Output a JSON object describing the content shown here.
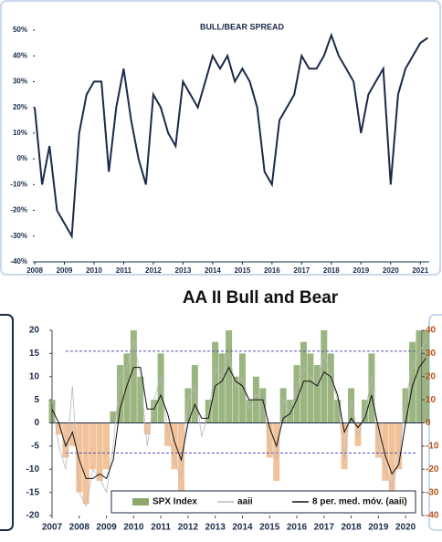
{
  "chart_data": [
    {
      "type": "line",
      "title": "BULL/BEAR SPREAD",
      "x": [
        2008,
        2008.25,
        2008.5,
        2008.75,
        2009,
        2009.25,
        2009.5,
        2009.75,
        2010,
        2010.25,
        2010.5,
        2010.75,
        2011,
        2011.25,
        2011.5,
        2011.75,
        2012,
        2012.25,
        2012.5,
        2012.75,
        2013,
        2013.25,
        2013.5,
        2013.75,
        2014,
        2014.25,
        2014.5,
        2014.75,
        2015,
        2015.25,
        2015.5,
        2015.75,
        2016,
        2016.25,
        2016.5,
        2016.75,
        2017,
        2017.25,
        2017.5,
        2017.75,
        2018,
        2018.25,
        2018.5,
        2018.75,
        2019,
        2019.25,
        2019.5,
        2019.75,
        2020,
        2020.25,
        2020.5,
        2020.75,
        2021,
        2021.25
      ],
      "series": [
        {
          "color": "#1a2a4a",
          "values": [
            20,
            -10,
            5,
            -20,
            -25,
            -30,
            10,
            25,
            30,
            30,
            -5,
            20,
            35,
            15,
            0,
            -10,
            25,
            20,
            10,
            5,
            30,
            25,
            20,
            30,
            40,
            35,
            40,
            30,
            35,
            30,
            20,
            -5,
            -10,
            15,
            20,
            25,
            40,
            35,
            35,
            40,
            48,
            40,
            35,
            30,
            10,
            25,
            30,
            35,
            -10,
            25,
            35,
            40,
            45,
            47
          ]
        }
      ],
      "xlim": [
        2008,
        2021.3
      ],
      "xticks": [
        2008,
        2009,
        2010,
        2011,
        2012,
        2013,
        2014,
        2015,
        2016,
        2017,
        2018,
        2019,
        2020,
        2021
      ],
      "ylim": [
        -40,
        50
      ],
      "yticks": [
        {
          "value": -40,
          "label": "-40%"
        },
        {
          "value": -30,
          "label": "-30%"
        },
        {
          "value": -20,
          "label": "-20%"
        },
        {
          "value": -10,
          "label": "-10%"
        },
        {
          "value": 0,
          "label": "0%"
        },
        {
          "value": 10,
          "label": "10%"
        },
        {
          "value": 20,
          "label": "20%"
        },
        {
          "value": 30,
          "label": "30%"
        },
        {
          "value": 40,
          "label": "40%"
        },
        {
          "value": 50,
          "label": "50%"
        }
      ]
    },
    {
      "type": "combo",
      "title": "AA II Bull and Bear",
      "x": [
        2007,
        2007.25,
        2007.5,
        2007.75,
        2008,
        2008.25,
        2008.5,
        2008.75,
        2009,
        2009.25,
        2009.5,
        2009.75,
        2010,
        2010.25,
        2010.5,
        2010.75,
        2011,
        2011.25,
        2011.5,
        2011.75,
        2012,
        2012.25,
        2012.5,
        2012.75,
        2013,
        2013.25,
        2013.5,
        2013.75,
        2014,
        2014.25,
        2014.5,
        2014.75,
        2015,
        2015.25,
        2015.5,
        2015.75,
        2016,
        2016.25,
        2016.5,
        2016.75,
        2017,
        2017.25,
        2017.5,
        2017.75,
        2018,
        2018.25,
        2018.5,
        2018.75,
        2019,
        2019.25,
        2019.5,
        2019.75,
        2020,
        2020.25,
        2020.5,
        2020.75
      ],
      "series": [
        {
          "name": "SPX Index",
          "type": "bar",
          "axis": "y2",
          "color": "#8aa86a",
          "negative_color": "#f0b88a",
          "values": [
            10,
            -5,
            -15,
            -10,
            -30,
            -35,
            -20,
            -25,
            -20,
            5,
            25,
            30,
            40,
            20,
            -5,
            10,
            30,
            -10,
            -20,
            -30,
            15,
            25,
            0,
            10,
            35,
            30,
            40,
            20,
            30,
            10,
            20,
            15,
            -15,
            -25,
            15,
            10,
            25,
            35,
            30,
            25,
            40,
            30,
            10,
            -20,
            15,
            -10,
            10,
            30,
            -15,
            -25,
            -35,
            -20,
            15,
            35,
            40,
            40
          ]
        },
        {
          "name": "aaii",
          "type": "line",
          "color": "#b8b8c0",
          "values": [
            5,
            -5,
            -10,
            8,
            -15,
            -18,
            -10,
            -12,
            -15,
            -5,
            10,
            12,
            18,
            10,
            -5,
            5,
            10,
            -2,
            -8,
            -12,
            5,
            8,
            -3,
            2,
            12,
            10,
            15,
            8,
            10,
            3,
            6,
            5,
            -5,
            -8,
            5,
            2,
            8,
            12,
            10,
            8,
            15,
            10,
            5,
            -8,
            5,
            -3,
            2,
            10,
            -5,
            -10,
            -14,
            -8,
            5,
            12,
            15,
            18
          ]
        },
        {
          "name": "8 per. med. móv. (aaii)",
          "type": "line",
          "color": "#111111",
          "values": [
            3,
            0,
            -5,
            -2,
            -8,
            -12,
            -12,
            -11,
            -12,
            -8,
            3,
            8,
            12,
            12,
            3,
            3,
            6,
            2,
            -4,
            -8,
            0,
            4,
            1,
            1,
            8,
            9,
            12,
            9,
            8,
            5,
            5,
            5,
            -1,
            -5,
            1,
            2,
            5,
            9,
            9,
            8,
            11,
            10,
            6,
            -2,
            1,
            -1,
            1,
            6,
            -1,
            -7,
            -11,
            -9,
            0,
            8,
            12,
            14
          ]
        }
      ],
      "xlim": [
        2007,
        2020.6
      ],
      "xticks": [
        2007,
        2008,
        2009,
        2010,
        2011,
        2012,
        2013,
        2014,
        2015,
        2016,
        2017,
        2018,
        2019,
        2020
      ],
      "ylim": [
        -20,
        20
      ],
      "yticks": [
        -20,
        -15,
        -10,
        -5,
        0,
        5,
        10,
        15,
        20
      ],
      "y2lim": [
        -40,
        40
      ],
      "y2ticks": [
        -40,
        -30,
        -20,
        -10,
        0,
        10,
        20,
        30,
        40
      ],
      "hlines": [
        15.5,
        -6.5
      ]
    }
  ]
}
